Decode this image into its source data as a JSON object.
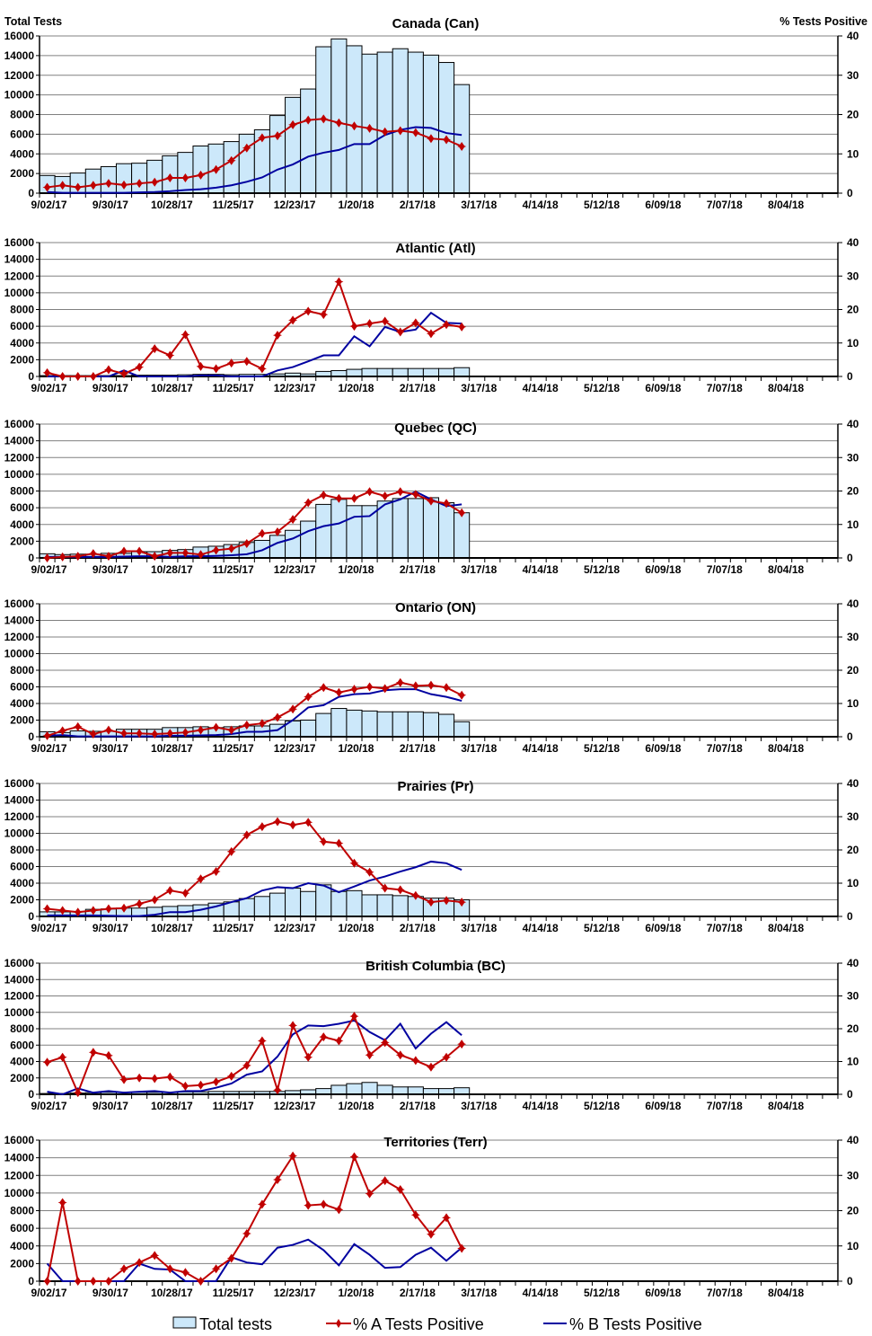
{
  "chart_data": [
    {
      "type": "bar+line",
      "left_axis_title": "Total Tests",
      "right_axis_title": "% Tests Positive",
      "ylim_left": [
        0,
        16000
      ],
      "ylim_right": [
        0,
        40
      ],
      "left_ticks": [
        "0",
        "2000",
        "4000",
        "6000",
        "8000",
        "10000",
        "12000",
        "14000",
        "16000"
      ],
      "right_ticks": [
        "0",
        "10",
        "20",
        "30",
        "40"
      ],
      "x_tick_labels": [
        "9/02/17",
        "9/30/17",
        "10/28/17",
        "11/25/17",
        "12/23/17",
        "1/20/18",
        "2/17/18",
        "3/17/18",
        "4/14/18",
        "5/12/18",
        "6/09/18",
        "7/07/18",
        "8/04/18"
      ],
      "x_weeks_total": 52,
      "grid": true,
      "legend": {
        "position": "bottom",
        "items": [
          "Total tests",
          "% A Tests Positive",
          "% B Tests Positive"
        ]
      },
      "colors": {
        "bars": "#cce8fa",
        "pct_a": "#c00000",
        "pct_b": "#0000a0"
      },
      "panels": [
        {
          "title": "Canada (Can)",
          "tests": [
            1800,
            1700,
            2050,
            2450,
            2700,
            3000,
            3050,
            3350,
            3800,
            4150,
            4800,
            5000,
            5250,
            6000,
            6450,
            7900,
            9750,
            10600,
            14900,
            15700,
            15000,
            14150,
            14350,
            14700,
            14350,
            14050,
            13300,
            11050
          ],
          "pct_a": [
            1.5,
            2.0,
            1.5,
            2.0,
            2.5,
            2.1,
            2.5,
            2.8,
            3.9,
            3.9,
            4.6,
            6.0,
            8.3,
            11.5,
            14.1,
            14.6,
            17.4,
            18.6,
            18.9,
            17.9,
            17.1,
            16.5,
            15.6,
            15.9,
            15.4,
            13.9,
            13.6,
            11.9
          ],
          "pct_b": [
            0.3,
            0.1,
            0.1,
            0.1,
            0.1,
            0.1,
            0.2,
            0.3,
            0.5,
            0.8,
            1.0,
            1.4,
            2.0,
            2.9,
            4.0,
            6.0,
            7.3,
            9.3,
            10.3,
            11.0,
            12.5,
            12.5,
            14.8,
            16.1,
            16.8,
            16.6,
            15.3,
            14.8
          ]
        },
        {
          "title": "Atlantic (Atl)",
          "tests": [
            100,
            100,
            100,
            100,
            100,
            100,
            150,
            150,
            150,
            200,
            250,
            250,
            200,
            250,
            250,
            300,
            400,
            300,
            600,
            700,
            850,
            950,
            950,
            950,
            950,
            950,
            950,
            1050
          ],
          "pct_a": [
            1.1,
            0,
            0,
            0,
            2.0,
            0.8,
            2.8,
            8.3,
            6.3,
            12.5,
            3.0,
            2.3,
            4.0,
            4.5,
            2.3,
            12.3,
            16.8,
            19.5,
            18.5,
            28.3,
            15.0,
            15.8,
            16.5,
            13.3,
            16.0,
            12.8,
            15.5,
            14.8
          ],
          "pct_b": [
            0,
            0,
            0,
            0,
            0,
            1.8,
            0,
            0,
            0,
            0,
            0.3,
            0.3,
            0,
            0,
            0,
            1.8,
            2.8,
            4.5,
            6.3,
            6.3,
            12.0,
            9.0,
            14.8,
            13.3,
            14.0,
            19.0,
            16.0,
            15.8
          ]
        },
        {
          "title": "Quebec (QC)",
          "tests": [
            500,
            400,
            450,
            450,
            550,
            550,
            750,
            750,
            900,
            1000,
            1300,
            1400,
            1600,
            1850,
            2100,
            2700,
            3300,
            4400,
            6400,
            7000,
            6250,
            6250,
            6800,
            7100,
            7100,
            7200,
            6600,
            5400
          ],
          "pct_a": [
            0,
            0.3,
            0.5,
            1.3,
            0.5,
            2.0,
            2.0,
            0.5,
            1.5,
            1.5,
            1.0,
            2.3,
            2.8,
            4.3,
            7.3,
            7.8,
            11.5,
            16.5,
            18.8,
            17.8,
            17.8,
            19.8,
            18.5,
            19.8,
            19.0,
            17.0,
            16.3,
            13.5
          ],
          "pct_b": [
            0.3,
            0.3,
            0.3,
            0.3,
            0.3,
            0.4,
            0.5,
            0.5,
            0.3,
            0.5,
            0.5,
            0.6,
            0.8,
            1.1,
            2.3,
            4.5,
            5.8,
            8.0,
            9.5,
            10.3,
            12.3,
            12.5,
            16.0,
            17.5,
            19.8,
            17.5,
            15.5,
            16.0
          ]
        },
        {
          "title": "Ontario (ON)",
          "tests": [
            600,
            500,
            700,
            650,
            650,
            900,
            900,
            900,
            1100,
            1100,
            1200,
            1100,
            1200,
            1300,
            1300,
            1500,
            1900,
            2000,
            2800,
            3400,
            3200,
            3100,
            3000,
            3000,
            3000,
            2900,
            2700,
            1800
          ],
          "pct_a": [
            0.3,
            1.8,
            3.0,
            0.8,
            2.0,
            1.0,
            1.0,
            0.8,
            1.0,
            1.3,
            2.0,
            2.8,
            2.0,
            3.5,
            4.0,
            5.8,
            8.3,
            12.0,
            14.8,
            13.3,
            14.3,
            15.0,
            14.5,
            16.3,
            15.3,
            15.5,
            14.8,
            12.5
          ],
          "pct_b": [
            0.3,
            0.5,
            0.1,
            0.1,
            0.1,
            0.1,
            0.1,
            0.1,
            0.3,
            0.3,
            0.4,
            0.5,
            0.8,
            1.5,
            1.5,
            2.0,
            5.0,
            8.8,
            9.5,
            12.0,
            12.8,
            13.0,
            14.0,
            14.3,
            14.3,
            12.8,
            12.0,
            10.8
          ]
        },
        {
          "title": "Prairies (Pr)",
          "tests": [
            550,
            550,
            600,
            850,
            900,
            1000,
            1000,
            1100,
            1200,
            1300,
            1400,
            1600,
            1750,
            2150,
            2400,
            2800,
            3400,
            3000,
            3800,
            3000,
            3100,
            2600,
            2600,
            2500,
            2400,
            2200,
            2200,
            2000
          ],
          "pct_a": [
            2.3,
            1.8,
            1.3,
            1.8,
            2.3,
            2.5,
            3.8,
            5.0,
            7.8,
            7.0,
            11.3,
            13.5,
            19.5,
            24.5,
            27.0,
            28.5,
            27.5,
            28.3,
            22.5,
            22.0,
            16.0,
            13.3,
            8.5,
            8.0,
            6.3,
            4.3,
            4.8,
            4.3
          ],
          "pct_b": [
            0.3,
            0.3,
            0.3,
            0.3,
            0.2,
            0.1,
            0.1,
            0.5,
            1.3,
            1.3,
            2.0,
            3.0,
            4.3,
            5.5,
            7.8,
            8.8,
            8.5,
            10.0,
            9.3,
            7.3,
            9.0,
            10.8,
            12.0,
            13.5,
            14.8,
            16.5,
            16.0,
            14.0
          ]
        },
        {
          "title": "British Columbia (BC)",
          "tests": [
            100,
            100,
            150,
            200,
            250,
            250,
            250,
            250,
            250,
            300,
            300,
            350,
            350,
            350,
            350,
            350,
            450,
            550,
            700,
            1100,
            1300,
            1450,
            1100,
            900,
            900,
            700,
            700,
            800
          ],
          "pct_a": [
            9.8,
            11.3,
            0.5,
            12.8,
            11.8,
            4.5,
            5.0,
            4.8,
            5.3,
            2.5,
            2.8,
            3.8,
            5.5,
            8.8,
            16.3,
            1.3,
            21.0,
            11.3,
            17.5,
            16.3,
            23.8,
            12.0,
            15.8,
            12.0,
            10.3,
            8.3,
            11.3,
            15.3
          ],
          "pct_b": [
            0.8,
            0,
            1.8,
            0.5,
            1.0,
            0.5,
            0.8,
            1.0,
            0.5,
            1.0,
            1.0,
            2.0,
            3.3,
            6.0,
            7.0,
            11.5,
            18.3,
            21.0,
            20.8,
            21.5,
            22.5,
            19.0,
            16.5,
            21.5,
            14.0,
            18.5,
            22.0,
            18.0
          ]
        },
        {
          "title": "Territories (Terr)",
          "tests": [
            0,
            0,
            0,
            0,
            0,
            0,
            0,
            0,
            0,
            0,
            0,
            0,
            0,
            0,
            0,
            0,
            0,
            0,
            0,
            0,
            0,
            0,
            0,
            0,
            0,
            0,
            0,
            0
          ],
          "pct_a": [
            0,
            22.3,
            0,
            0,
            0,
            3.5,
            5.3,
            7.3,
            3.5,
            2.5,
            0,
            3.5,
            6.5,
            13.5,
            21.8,
            28.8,
            35.5,
            21.5,
            21.8,
            20.3,
            35.3,
            24.8,
            28.5,
            26.0,
            18.8,
            13.3,
            18.0,
            9.3
          ],
          "pct_b": [
            5.0,
            0,
            0,
            0,
            0,
            0,
            5.0,
            3.5,
            3.3,
            0,
            0,
            0,
            6.8,
            5.3,
            4.8,
            9.5,
            10.3,
            11.8,
            8.8,
            4.5,
            10.5,
            7.5,
            3.8,
            4.0,
            7.5,
            9.5,
            5.8,
            9.5
          ]
        }
      ]
    }
  ]
}
